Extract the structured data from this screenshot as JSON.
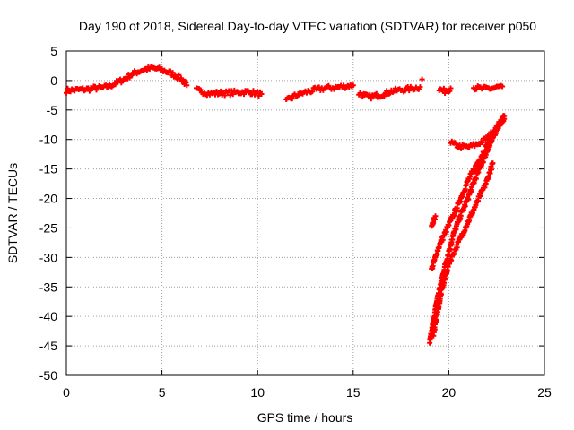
{
  "chart_data": {
    "type": "scatter",
    "title": "Day 190 of 2018, Sidereal Day-to-day VTEC variation (SDTVAR) for receiver p050",
    "xlabel": "GPS time / hours",
    "ylabel": "SDTVAR / TECUs",
    "xlim": [
      0,
      25
    ],
    "ylim": [
      -50,
      5
    ],
    "xticks": [
      0,
      5,
      10,
      15,
      20,
      25
    ],
    "yticks": [
      5,
      0,
      -5,
      -10,
      -15,
      -20,
      -25,
      -30,
      -35,
      -40,
      -45,
      -50
    ],
    "grid": true,
    "marker": "plus",
    "color": "#ff0000",
    "series": [
      {
        "name": "seg1",
        "x": [
          0,
          0.5,
          1,
          1.5,
          2,
          2.5,
          3,
          3.5,
          4,
          4.5,
          5,
          5.5,
          6,
          6.3
        ],
        "y": [
          -1.7,
          -1.6,
          -1.5,
          -1.3,
          -1.2,
          -0.6,
          0.2,
          1.2,
          1.8,
          2.1,
          1.8,
          1.2,
          0.3,
          -0.8
        ]
      },
      {
        "name": "seg2",
        "x": [
          6.8,
          7.5,
          8.5,
          9.5,
          10.2
        ],
        "y": [
          -1.6,
          -2.2,
          -2.1,
          -1.9,
          -2.3
        ]
      },
      {
        "name": "seg3",
        "x": [
          11.5,
          12,
          12.5,
          13,
          13.5,
          14,
          14.5,
          15
        ],
        "y": [
          -3.5,
          -2.5,
          -2,
          -1.6,
          -1.3,
          -1.2,
          -1,
          -0.8
        ]
      },
      {
        "name": "seg4",
        "x": [
          15.3,
          15.8,
          16.5,
          17,
          17.5,
          18,
          18.5
        ],
        "y": [
          -2.2,
          -2.8,
          -2.4,
          -1.8,
          -1.6,
          -1.4,
          -1.1
        ]
      },
      {
        "name": "seg5",
        "x": [
          18.6
        ],
        "y": [
          0.2
        ]
      },
      {
        "name": "seg6",
        "x": [
          19.5,
          19.8,
          20.1
        ],
        "y": [
          -1.5,
          -1.8,
          -1.3
        ]
      },
      {
        "name": "seg7",
        "x": [
          21.3,
          21.8,
          22.3,
          22.8
        ],
        "y": [
          -1.2,
          -1.4,
          -1.3,
          -1.0
        ]
      },
      {
        "name": "seg8",
        "x": [
          19.1,
          19.3
        ],
        "y": [
          -25,
          -23
        ]
      },
      {
        "name": "seg9",
        "x": [
          20.1,
          20.5,
          21,
          21.5,
          22,
          22.5,
          22.9
        ],
        "y": [
          -10.5,
          -11.2,
          -11.3,
          -10.8,
          -9.8,
          -8,
          -6
        ]
      },
      {
        "name": "seg10",
        "x": [
          19.1,
          19.5,
          20,
          20.5,
          21,
          21.5,
          22,
          22.5,
          22.9
        ],
        "y": [
          -32,
          -28,
          -24.5,
          -21,
          -17,
          -14,
          -11,
          -8.5,
          -6
        ]
      },
      {
        "name": "seg11",
        "x": [
          19,
          19.4,
          19.8,
          20.2,
          20.6,
          21,
          21.4,
          21.8,
          22.2,
          22.5,
          22.9
        ],
        "y": [
          -44.5,
          -37,
          -31.5,
          -26.5,
          -23,
          -20,
          -16.5,
          -13.5,
          -10.5,
          -8,
          -6.5
        ]
      },
      {
        "name": "seg12",
        "x": [
          19.2,
          19.6,
          20,
          20.5,
          21,
          21.5,
          22,
          22.3
        ],
        "y": [
          -43,
          -36,
          -31,
          -27.5,
          -24,
          -20.5,
          -17,
          -14
        ]
      }
    ]
  }
}
